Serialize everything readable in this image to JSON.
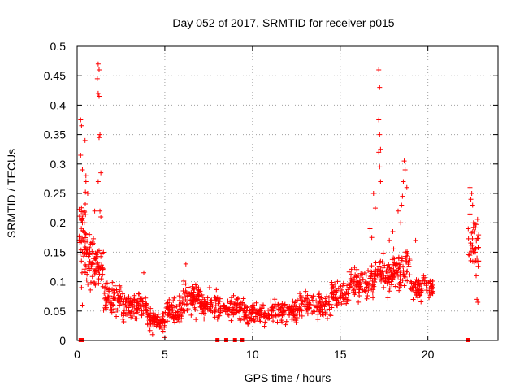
{
  "chart_data": {
    "type": "scatter",
    "title": "Day 052 of 2017, SRMTID for receiver p015",
    "xlabel": "GPS time / hours",
    "ylabel": "SRMTID / TECUs",
    "xlim": [
      0,
      24
    ],
    "ylim": [
      0,
      0.5
    ],
    "x_ticks": [
      0,
      5,
      10,
      15,
      20
    ],
    "x_tick_labels": [
      "0",
      "5",
      "10",
      "15",
      "20"
    ],
    "y_ticks": [
      0,
      0.05,
      0.1,
      0.15,
      0.2,
      0.25,
      0.3,
      0.35,
      0.4,
      0.45,
      0.5
    ],
    "y_tick_labels": [
      "0",
      "0.05",
      "0.1",
      "0.15",
      "0.2",
      "0.25",
      "0.3",
      "0.35",
      "0.4",
      "0.45",
      "0.5"
    ],
    "grid": true,
    "marker": "+",
    "series_color": "#ff0000",
    "zero_markers_x": [
      0.2,
      0.3,
      8.0,
      8.5,
      9.0,
      9.4,
      22.3
    ],
    "outliers": [
      {
        "x": 0.2,
        "y": 0.375
      },
      {
        "x": 0.25,
        "y": 0.365
      },
      {
        "x": 0.2,
        "y": 0.315
      },
      {
        "x": 0.3,
        "y": 0.29
      },
      {
        "x": 0.45,
        "y": 0.34
      },
      {
        "x": 0.5,
        "y": 0.27
      },
      {
        "x": 0.6,
        "y": 0.25
      },
      {
        "x": 0.4,
        "y": 0.22
      },
      {
        "x": 0.3,
        "y": 0.2
      },
      {
        "x": 0.7,
        "y": 0.18
      },
      {
        "x": 0.25,
        "y": 0.09
      },
      {
        "x": 0.3,
        "y": 0.06
      },
      {
        "x": 1.2,
        "y": 0.47
      },
      {
        "x": 1.25,
        "y": 0.46
      },
      {
        "x": 1.15,
        "y": 0.445
      },
      {
        "x": 1.2,
        "y": 0.42
      },
      {
        "x": 1.25,
        "y": 0.415
      },
      {
        "x": 1.3,
        "y": 0.35
      },
      {
        "x": 1.25,
        "y": 0.345
      },
      {
        "x": 1.35,
        "y": 0.285
      },
      {
        "x": 1.2,
        "y": 0.27
      },
      {
        "x": 1.3,
        "y": 0.22
      },
      {
        "x": 1.35,
        "y": 0.21
      },
      {
        "x": 1.0,
        "y": 0.22
      },
      {
        "x": 4.3,
        "y": 0.01
      },
      {
        "x": 5.0,
        "y": 0.005
      },
      {
        "x": 6.2,
        "y": 0.13
      },
      {
        "x": 3.8,
        "y": 0.115
      },
      {
        "x": 17.2,
        "y": 0.46
      },
      {
        "x": 17.25,
        "y": 0.43
      },
      {
        "x": 17.2,
        "y": 0.375
      },
      {
        "x": 17.25,
        "y": 0.35
      },
      {
        "x": 17.3,
        "y": 0.325
      },
      {
        "x": 17.2,
        "y": 0.32
      },
      {
        "x": 17.25,
        "y": 0.295
      },
      {
        "x": 17.3,
        "y": 0.27
      },
      {
        "x": 16.9,
        "y": 0.25
      },
      {
        "x": 17.0,
        "y": 0.225
      },
      {
        "x": 18.65,
        "y": 0.305
      },
      {
        "x": 18.7,
        "y": 0.29
      },
      {
        "x": 18.6,
        "y": 0.27
      },
      {
        "x": 18.8,
        "y": 0.26
      },
      {
        "x": 18.55,
        "y": 0.245
      },
      {
        "x": 18.5,
        "y": 0.23
      },
      {
        "x": 18.3,
        "y": 0.22
      },
      {
        "x": 18.45,
        "y": 0.2
      },
      {
        "x": 19.3,
        "y": 0.17
      },
      {
        "x": 16.7,
        "y": 0.19
      },
      {
        "x": 16.8,
        "y": 0.175
      },
      {
        "x": 17.8,
        "y": 0.17
      },
      {
        "x": 18.0,
        "y": 0.185
      },
      {
        "x": 22.4,
        "y": 0.26
      },
      {
        "x": 22.5,
        "y": 0.25
      },
      {
        "x": 22.45,
        "y": 0.24
      },
      {
        "x": 22.55,
        "y": 0.23
      },
      {
        "x": 22.4,
        "y": 0.215
      },
      {
        "x": 22.6,
        "y": 0.2
      },
      {
        "x": 22.3,
        "y": 0.19
      },
      {
        "x": 22.7,
        "y": 0.15
      },
      {
        "x": 22.8,
        "y": 0.14
      },
      {
        "x": 22.9,
        "y": 0.135
      },
      {
        "x": 22.75,
        "y": 0.11
      },
      {
        "x": 22.8,
        "y": 0.07
      },
      {
        "x": 22.85,
        "y": 0.065
      }
    ],
    "envelope": [
      {
        "x_start": 0.1,
        "x_end": 0.5,
        "y_mean": 0.18,
        "y_spread": 0.09,
        "n": 45
      },
      {
        "x_start": 0.5,
        "x_end": 1.0,
        "y_mean": 0.14,
        "y_spread": 0.05,
        "n": 45
      },
      {
        "x_start": 1.0,
        "x_end": 1.5,
        "y_mean": 0.13,
        "y_spread": 0.05,
        "n": 40
      },
      {
        "x_start": 1.5,
        "x_end": 2.5,
        "y_mean": 0.07,
        "y_spread": 0.03,
        "n": 70
      },
      {
        "x_start": 2.5,
        "x_end": 4.0,
        "y_mean": 0.06,
        "y_spread": 0.025,
        "n": 100
      },
      {
        "x_start": 4.0,
        "x_end": 5.0,
        "y_mean": 0.035,
        "y_spread": 0.02,
        "n": 70
      },
      {
        "x_start": 5.0,
        "x_end": 6.0,
        "y_mean": 0.05,
        "y_spread": 0.025,
        "n": 70
      },
      {
        "x_start": 6.0,
        "x_end": 7.0,
        "y_mean": 0.07,
        "y_spread": 0.03,
        "n": 70
      },
      {
        "x_start": 7.0,
        "x_end": 8.0,
        "y_mean": 0.06,
        "y_spread": 0.025,
        "n": 60
      },
      {
        "x_start": 8.0,
        "x_end": 9.5,
        "y_mean": 0.055,
        "y_spread": 0.025,
        "n": 80
      },
      {
        "x_start": 9.5,
        "x_end": 11.0,
        "y_mean": 0.045,
        "y_spread": 0.02,
        "n": 90
      },
      {
        "x_start": 11.0,
        "x_end": 12.5,
        "y_mean": 0.05,
        "y_spread": 0.022,
        "n": 90
      },
      {
        "x_start": 12.5,
        "x_end": 14.5,
        "y_mean": 0.06,
        "y_spread": 0.025,
        "n": 110
      },
      {
        "x_start": 14.5,
        "x_end": 15.5,
        "y_mean": 0.08,
        "y_spread": 0.025,
        "n": 60
      },
      {
        "x_start": 15.5,
        "x_end": 17.0,
        "y_mean": 0.1,
        "y_spread": 0.03,
        "n": 90
      },
      {
        "x_start": 17.0,
        "x_end": 18.0,
        "y_mean": 0.11,
        "y_spread": 0.035,
        "n": 70
      },
      {
        "x_start": 18.0,
        "x_end": 19.0,
        "y_mean": 0.12,
        "y_spread": 0.04,
        "n": 70
      },
      {
        "x_start": 19.0,
        "x_end": 20.3,
        "y_mean": 0.09,
        "y_spread": 0.03,
        "n": 80
      },
      {
        "x_start": 22.3,
        "x_end": 22.9,
        "y_mean": 0.17,
        "y_spread": 0.05,
        "n": 35
      }
    ]
  }
}
